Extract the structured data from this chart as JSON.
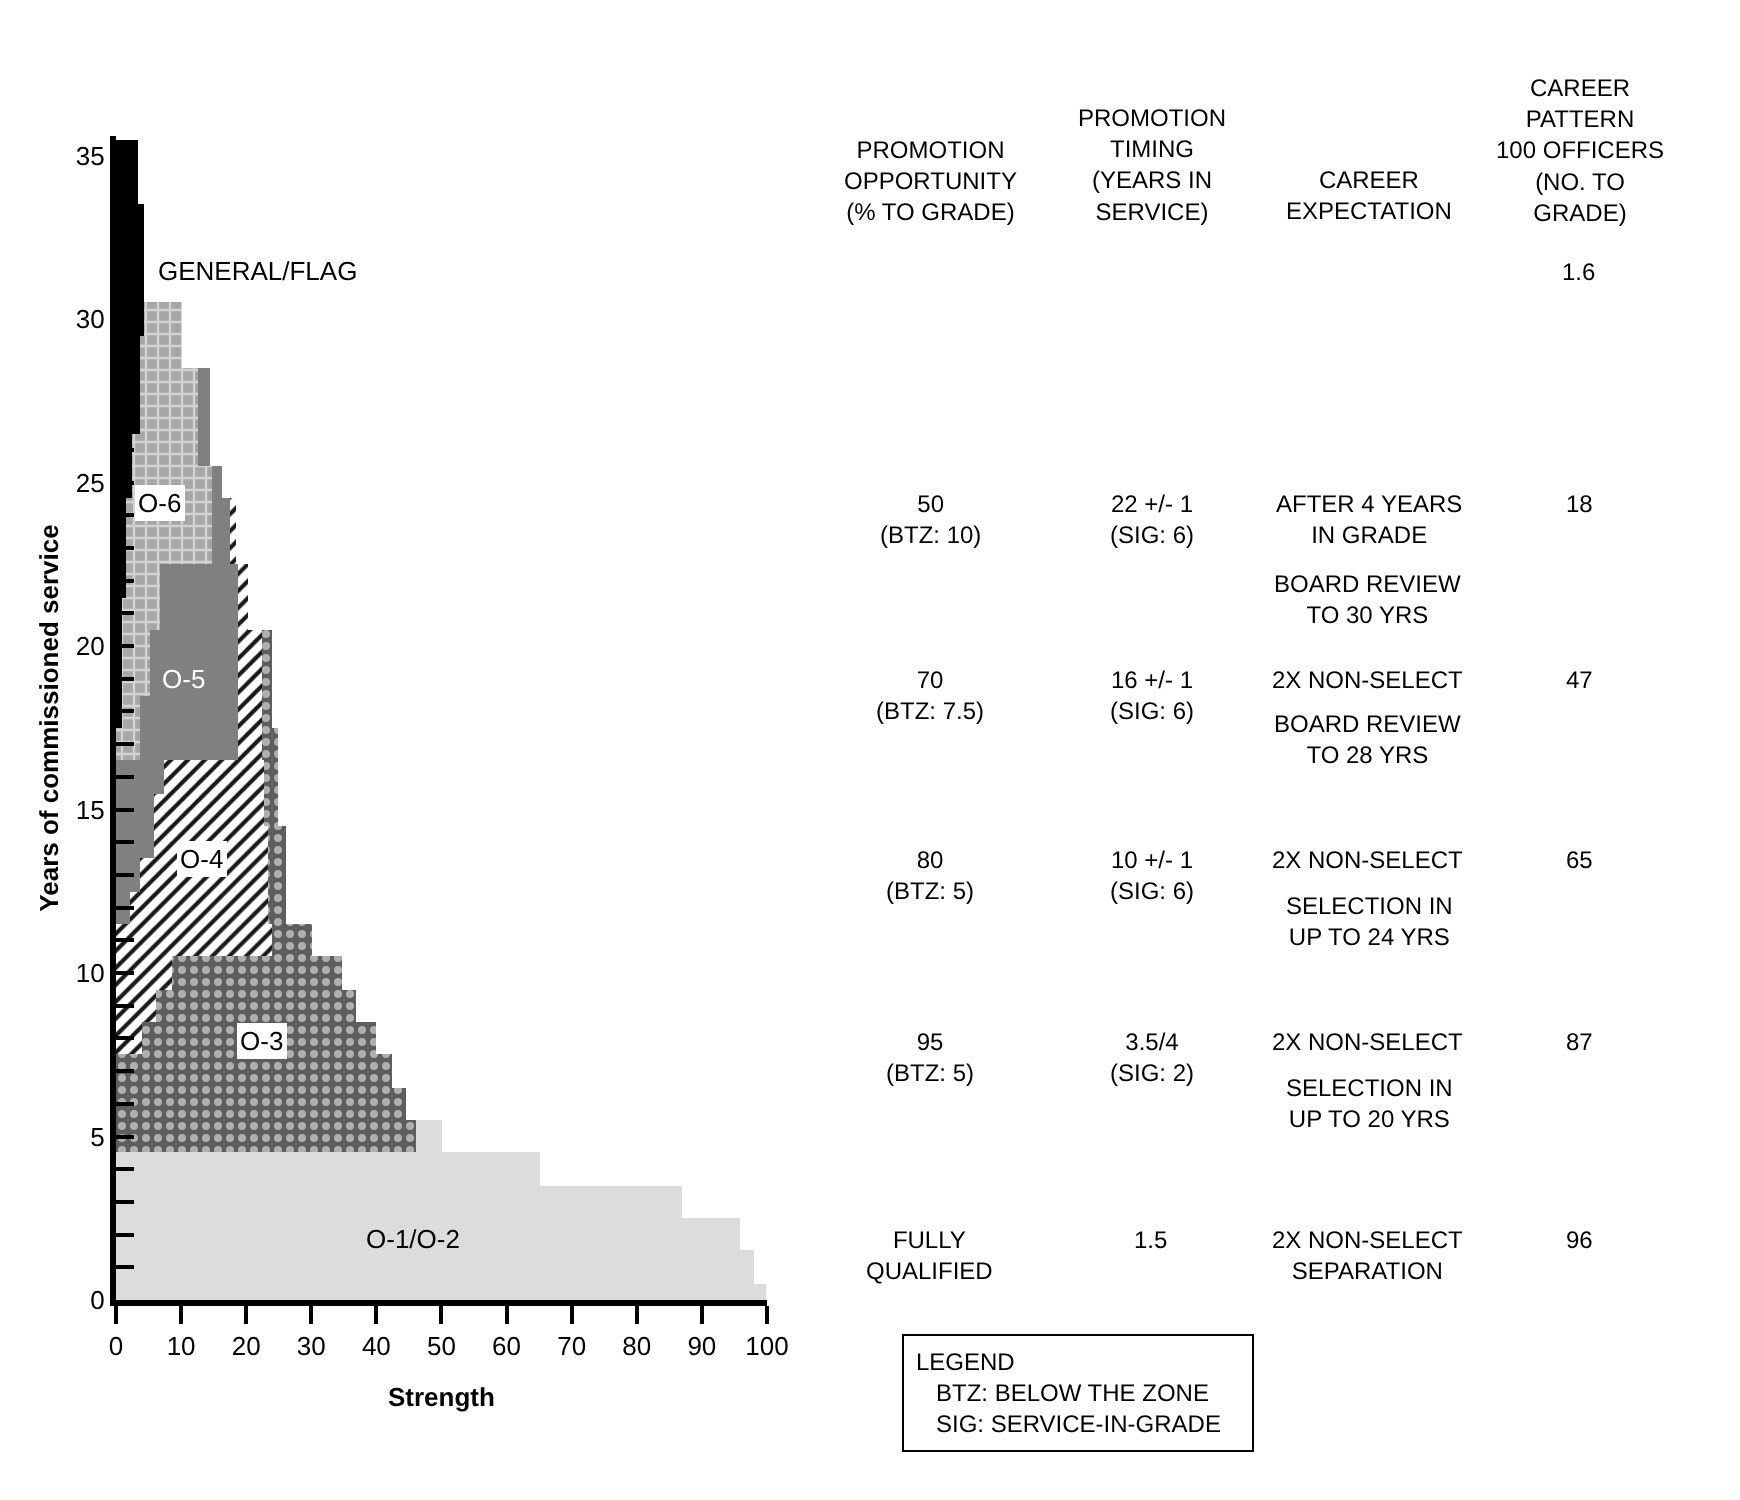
{
  "chart_data": {
    "type": "bar",
    "orientation": "horizontal",
    "stacked": true,
    "legend": false,
    "xlabel": "Strength",
    "ylabel": "Years of commissioned service",
    "x": [
      0,
      1,
      2,
      3,
      4,
      5,
      6,
      7,
      8,
      9,
      10,
      11,
      12,
      13,
      14,
      15,
      16,
      17,
      18,
      19,
      20,
      21,
      22,
      23,
      24,
      25,
      26,
      27,
      28,
      29,
      30,
      31,
      32,
      33,
      34,
      35
    ],
    "xlim": [
      0,
      100
    ],
    "xticks": [
      0,
      10,
      20,
      30,
      40,
      50,
      60,
      70,
      80,
      90,
      100
    ],
    "ylim": [
      0,
      35.6
    ],
    "yticks": [
      0,
      {
        "value": 1,
        "label": null
      },
      {
        "value": 2,
        "label": null
      },
      {
        "value": 3,
        "label": null
      },
      {
        "value": 4,
        "label": null
      },
      5,
      {
        "value": 6,
        "label": null
      },
      {
        "value": 7,
        "label": null
      },
      {
        "value": 8,
        "label": null
      },
      {
        "value": 9,
        "label": null
      },
      10,
      {
        "value": 11,
        "label": null
      },
      {
        "value": 12,
        "label": null
      },
      {
        "value": 13,
        "label": null
      },
      {
        "value": 14,
        "label": null
      },
      15,
      {
        "value": 16,
        "label": null
      },
      {
        "value": 17,
        "label": null
      },
      {
        "value": 18,
        "label": null
      },
      {
        "value": 19,
        "label": null
      },
      20,
      {
        "value": 21,
        "label": null
      },
      {
        "value": 22,
        "label": null
      },
      {
        "value": 23,
        "label": null
      },
      {
        "value": 24,
        "label": null
      },
      25,
      {
        "value": 26,
        "label": null
      },
      {
        "value": 27,
        "label": null
      },
      {
        "value": 28,
        "label": null
      },
      {
        "value": 29,
        "label": null
      },
      30,
      {
        "value": 31,
        "label": null
      },
      {
        "value": 32,
        "label": null
      },
      {
        "value": 33,
        "label": null
      },
      {
        "value": 34,
        "label": null
      },
      35
    ],
    "series": [
      {
        "name": "GENERAL/FLAG",
        "color": "#000000",
        "values": [
          0,
          0,
          0,
          0,
          0,
          0,
          0,
          0,
          0,
          0,
          0,
          0,
          0,
          0,
          0,
          0,
          0,
          0,
          0.9,
          0.9,
          0.9,
          0.9,
          1.6,
          1.6,
          1.6,
          2.6,
          2.6,
          3.6,
          3.6,
          3.6,
          4.4,
          4.4,
          4.4,
          4.4,
          3.4,
          3.4
        ]
      },
      {
        "name": "O-6",
        "color": "#a6a6a6",
        "values": [
          0,
          0,
          0,
          0,
          0,
          0,
          0,
          0,
          0,
          0,
          0,
          0,
          0,
          0,
          0,
          0,
          0,
          3.6,
          2.7,
          4.3,
          4.3,
          5.8,
          5.1,
          13.1,
          13.1,
          12.1,
          9.9,
          8.9,
          8.9,
          6.4,
          5.6,
          0,
          0,
          0,
          0,
          0
        ]
      },
      {
        "name": "O-5",
        "color": "#808080",
        "values": [
          0,
          0,
          0,
          0,
          0,
          0,
          0,
          0,
          0,
          0,
          0,
          0,
          2.1,
          3.6,
          5.7,
          5.7,
          7.5,
          15.2,
          15.2,
          13.6,
          13.6,
          12.1,
          12.1,
          3.1,
          3.1,
          1.6,
          1.9,
          1.9,
          1.9,
          0,
          0,
          0,
          0,
          0,
          0,
          0
        ]
      },
      {
        "name": "O-4",
        "color": "#1a1a1a",
        "values": [
          0,
          0,
          0,
          0,
          0,
          0,
          0,
          0,
          4.1,
          6.2,
          8.5,
          24.1,
          21.2,
          19.7,
          17.6,
          17.1,
          15.3,
          3.5,
          3.5,
          3.5,
          3.5,
          1.5,
          1.5,
          0.5,
          0.5,
          0,
          0,
          0,
          0,
          0,
          0,
          0,
          0,
          0,
          0,
          0
        ]
      },
      {
        "name": "O-3",
        "color": "#5e5e5e",
        "values": [
          0,
          0,
          0,
          0,
          0,
          46,
          44.5,
          42.5,
          35.9,
          30.8,
          26.1,
          5.9,
          2.7,
          2.7,
          2.7,
          2.0,
          2.0,
          2.5,
          1.8,
          1.8,
          1.8,
          0,
          0,
          0,
          0,
          0,
          0,
          0,
          0,
          0,
          0,
          0,
          0,
          0,
          0,
          0
        ]
      },
      {
        "name": "O-1/O-2",
        "color": "#dcdcdd",
        "values": [
          100,
          98,
          96,
          87,
          65,
          4,
          0,
          0,
          0,
          0,
          0,
          0,
          0,
          0,
          0,
          0,
          0,
          0,
          0,
          0,
          0,
          0,
          0,
          0,
          0,
          0,
          0,
          0,
          0,
          0,
          0,
          0,
          0,
          0,
          0,
          0
        ]
      }
    ],
    "annotations": [
      "PROMOTION\nOPPORTUNITY\n(% TO GRADE)",
      "PROMOTION\nTIMING\n(YEARS IN\nSERVICE)",
      "CAREER\nEXPECTATION",
      "CAREER\nPATTERN\n100 OFFICERS\n(NO. TO\nGRADE)",
      "1.6",
      "50\n(BTZ: 10)",
      "22 +/- 1\n(SIG: 6)",
      "AFTER 4 YEARS\nIN GRADE",
      "18",
      "BOARD REVIEW\nTO 30 YRS",
      "70\n(BTZ: 7.5)",
      "16 +/- 1\n(SIG: 6)",
      "2X NON-SELECT",
      "47",
      "BOARD REVIEW\nTO 28 YRS",
      "80\n(BTZ: 5)",
      "10 +/- 1\n(SIG: 6)",
      "2X NON-SELECT",
      "65",
      "SELECTION IN\nUP TO 24 YRS",
      "95\n(BTZ: 5)",
      "3.5/4\n(SIG: 2)",
      "2X NON-SELECT",
      "87",
      "SELECTION IN\nUP TO 20 YRS",
      "FULLY\nQUALIFIED",
      "1.5",
      "2X NON-SELECT\nSEPARATION",
      "96",
      "LEGEND\nBTZ: BELOW THE ZONE\nSIG: SERVICE-IN-GRADE"
    ]
  }
}
